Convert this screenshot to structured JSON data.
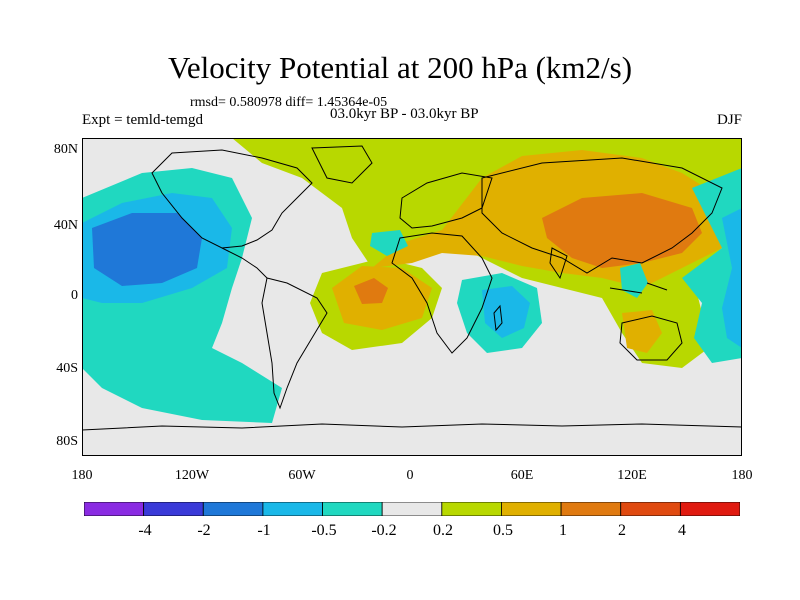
{
  "title": "Velocity Potential at 200 hPa (km2/s)",
  "stats_line": "rmsd= 0.580978 diff= 1.45364e-05",
  "experiment": "Expt = temld-temgd",
  "period": "03.0kyr BP - 03.0kyr BP",
  "season": "DJF",
  "map": {
    "lat_labels": [
      "80N",
      "40N",
      "0",
      "40S",
      "80S"
    ],
    "lon_labels": [
      "180",
      "120W",
      "60W",
      "0",
      "60E",
      "120E",
      "180"
    ]
  },
  "colorbar": {
    "colors": [
      "#8a2be2",
      "#3a3ad8",
      "#1f78d8",
      "#1ab8e8",
      "#20d8c0",
      "#e8e8e8",
      "#b8d800",
      "#e0b000",
      "#e07a10",
      "#e04a10",
      "#e01a10"
    ],
    "labels": [
      "-4",
      "-2",
      "-1",
      "-0.5",
      "-0.2",
      "0.2",
      "0.5",
      "1",
      "2",
      "4"
    ]
  }
}
